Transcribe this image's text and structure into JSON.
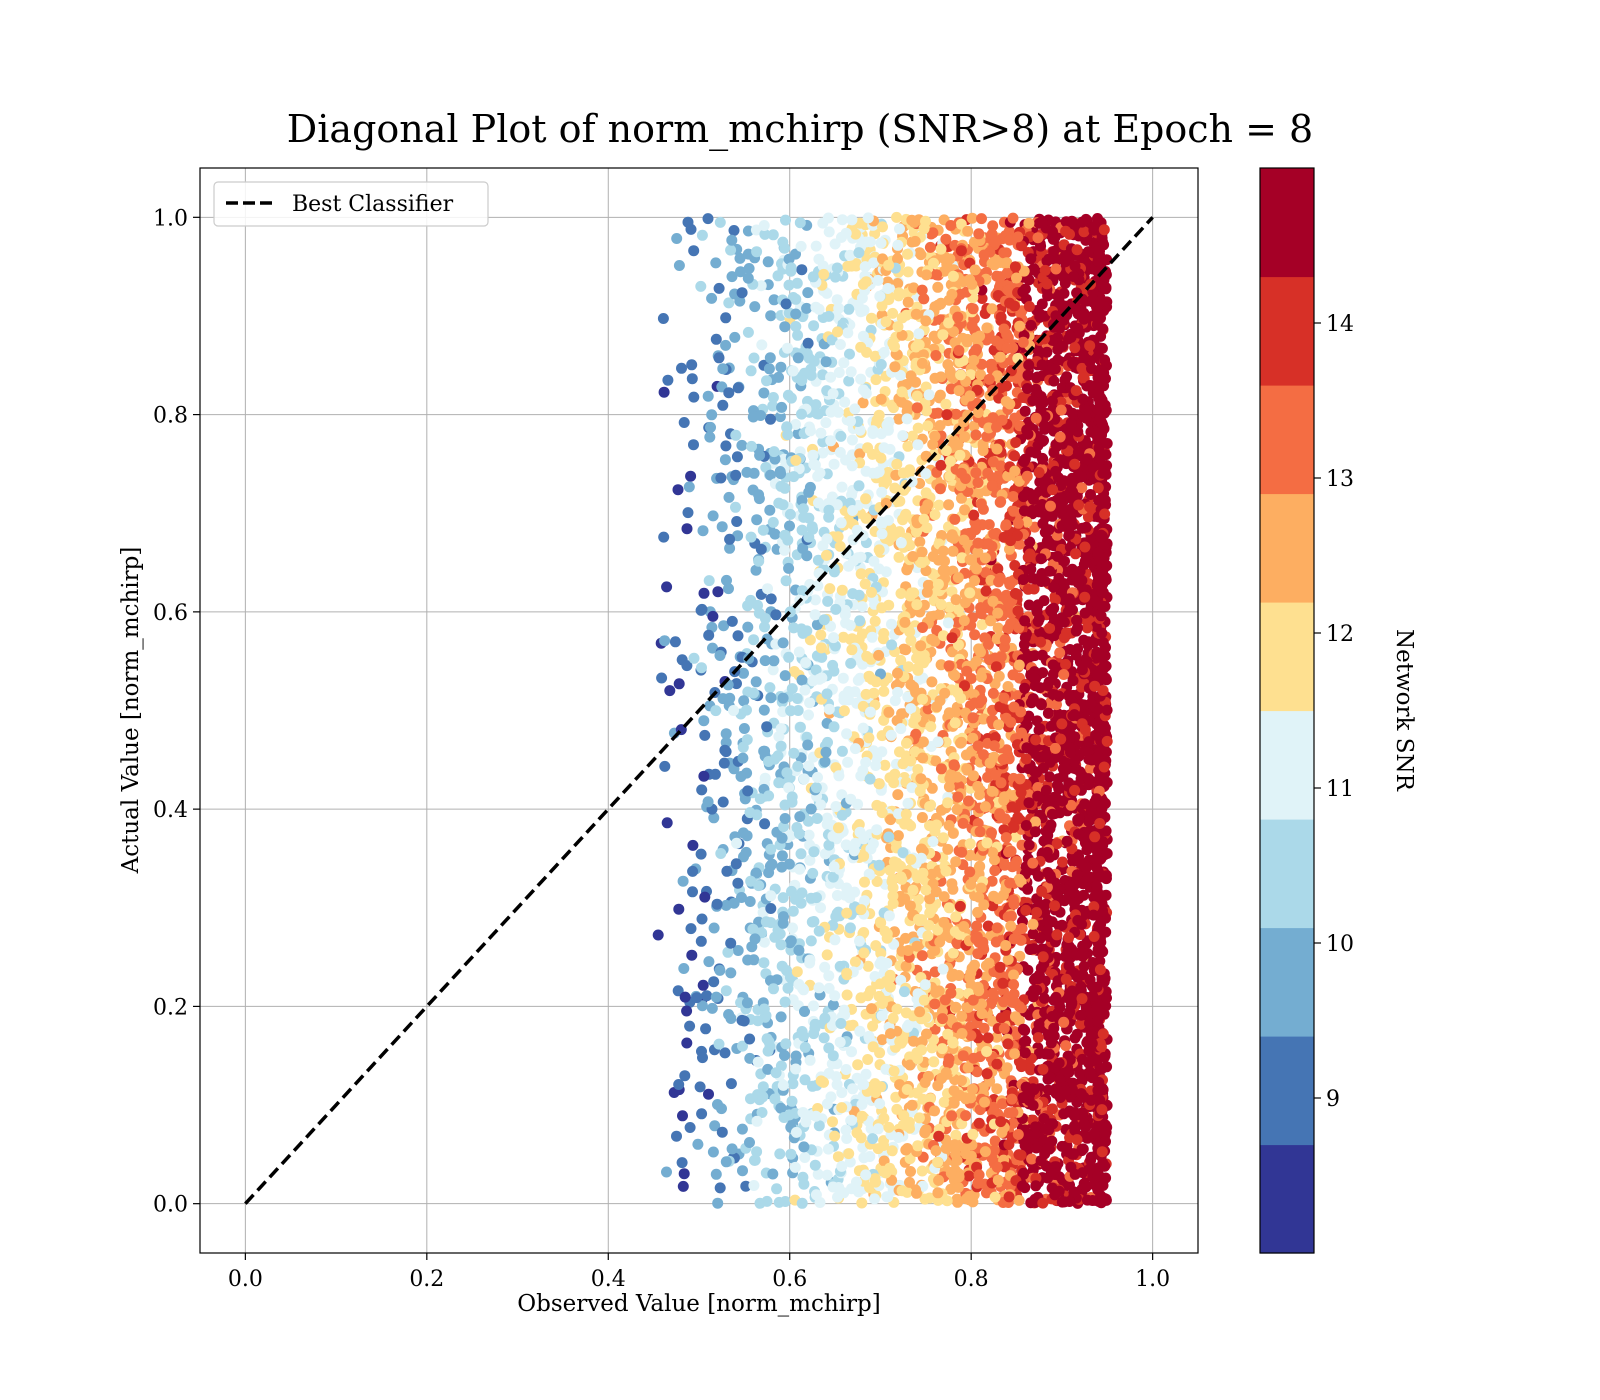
{
  "chart_data": {
    "type": "scatter",
    "title": "Diagonal Plot of norm_mchirp (SNR>8) at Epoch = 8",
    "xlabel": "Observed Value [norm_mchirp]",
    "ylabel": "Actual Value [norm_mchirp]",
    "xlim": [
      -0.05,
      1.05
    ],
    "ylim": [
      -0.05,
      1.05
    ],
    "xticks": [
      "0.0",
      "0.2",
      "0.4",
      "0.6",
      "0.8",
      "1.0"
    ],
    "yticks": [
      "0.0",
      "0.2",
      "0.4",
      "0.6",
      "0.8",
      "1.0"
    ],
    "grid": true,
    "legend": {
      "position": "top-left",
      "entries": [
        "Best Classifier"
      ]
    },
    "reference_line": {
      "name": "Best Classifier",
      "style": "dashed",
      "color": "#000000",
      "x": [
        0.0,
        1.0
      ],
      "y": [
        0.0,
        1.0
      ]
    },
    "scatter_summary": {
      "observed_range": [
        0.43,
        0.95
      ],
      "actual_range": [
        0.0,
        1.0
      ],
      "trend": "higher SNR points concentrate at higher observed values"
    },
    "colorbar": {
      "label": "Network SNR",
      "ticks": [
        "9",
        "10",
        "11",
        "12",
        "13",
        "14"
      ],
      "range": [
        8.0,
        15.0
      ],
      "colors": [
        "#313695",
        "#4575b4",
        "#74add1",
        "#abd9e9",
        "#e0f3f8",
        "#fee090",
        "#fdae61",
        "#f46d43",
        "#d73027",
        "#a50026"
      ]
    }
  }
}
